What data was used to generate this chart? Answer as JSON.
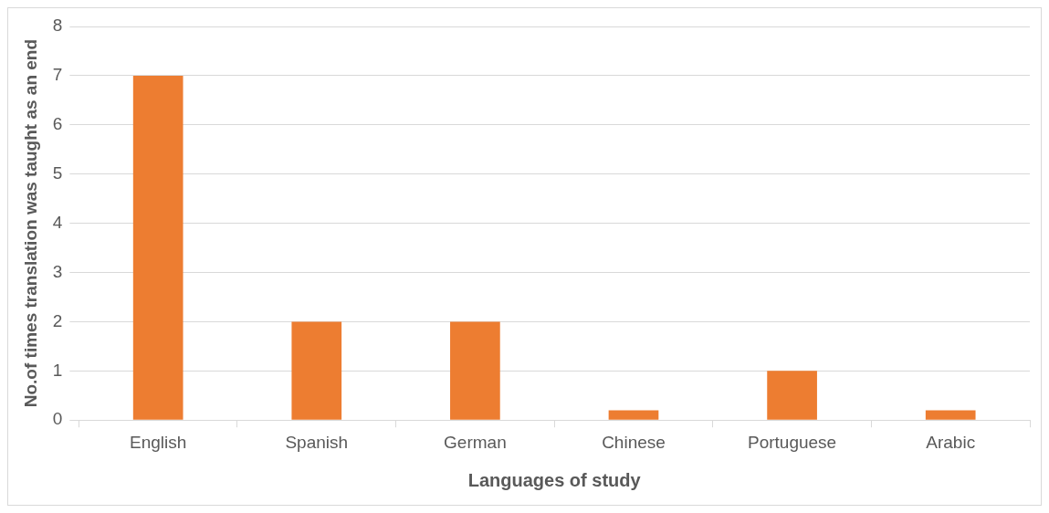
{
  "chart_data": {
    "type": "bar",
    "xlabel": "Languages of study",
    "ylabel": "No.of times translation was taught as an end",
    "categories": [
      "English",
      "Spanish",
      "German",
      "Chinese",
      "Portuguese",
      "Arabic"
    ],
    "values": [
      7,
      2,
      2,
      0.2,
      1,
      0.2
    ],
    "color": "#ed7d31",
    "ylim": [
      0,
      8
    ],
    "yticks": [
      0,
      1,
      2,
      3,
      4,
      5,
      6,
      7,
      8
    ],
    "grid": "y",
    "legend": false
  }
}
